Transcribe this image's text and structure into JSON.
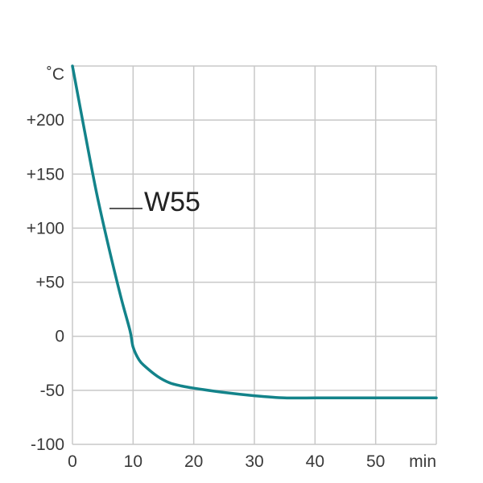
{
  "chart_data": {
    "type": "line",
    "x_unit": "min",
    "y_unit": "˚C",
    "xlim": [
      0,
      60
    ],
    "ylim": [
      -100,
      250
    ],
    "x_ticks": [
      0,
      10,
      20,
      30,
      40,
      50
    ],
    "x_tick_labels": [
      "0",
      "10",
      "20",
      "30",
      "40",
      "50"
    ],
    "y_ticks": [
      -100,
      -50,
      0,
      50,
      100,
      150,
      200
    ],
    "y_tick_labels": [
      "-100",
      "-50",
      "0",
      "+50",
      "+100",
      "+150",
      "+200"
    ],
    "grid": true,
    "series": [
      {
        "name": "W55",
        "color": "#13838a",
        "x": [
          0,
          2,
          4,
          6,
          8,
          9.5,
          10,
          11,
          12,
          14,
          16,
          18,
          20,
          25,
          30,
          35,
          40,
          45,
          50,
          60
        ],
        "y": [
          250,
          190,
          132,
          82,
          36,
          5,
          -10,
          -22,
          -28,
          -37,
          -43,
          -46,
          -48,
          -52,
          -55,
          -57,
          -57,
          -57,
          -57,
          -57
        ]
      }
    ],
    "legend_placement": "inline-left"
  }
}
